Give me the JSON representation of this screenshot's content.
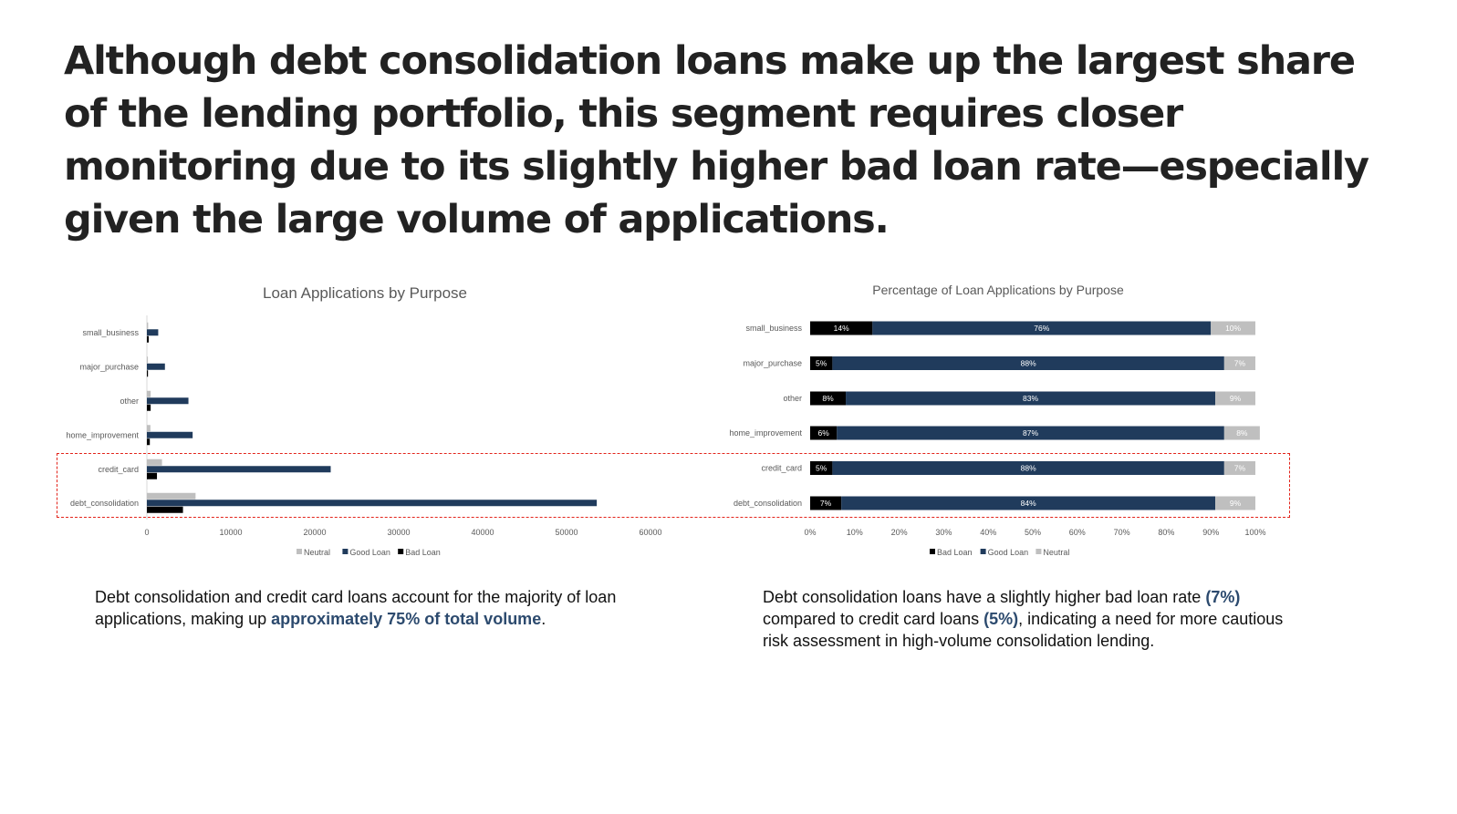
{
  "headline": "Although debt consolidation loans make up the largest share of the lending portfolio, this segment requires closer monitoring due to its slightly higher bad loan rate—especially given the large volume of applications.",
  "colors": {
    "neutral": "#bfbfbf",
    "good": "#203b5c",
    "bad": "#000000",
    "highlight_box": "#e3241b",
    "emphasis": "#2c4a6e"
  },
  "chart_data": [
    {
      "type": "bar",
      "orientation": "horizontal",
      "title": "Loan Applications by Purpose",
      "categories": [
        "small_business",
        "major_purchase",
        "other",
        "home_improvement",
        "credit_card",
        "debt_consolidation"
      ],
      "series": [
        {
          "name": "Neutral",
          "values": [
            150,
            120,
            450,
            420,
            1800,
            5800
          ]
        },
        {
          "name": "Good Loan",
          "values": [
            1350,
            2150,
            4950,
            5450,
            21900,
            53600
          ]
        },
        {
          "name": "Bad Loan",
          "values": [
            220,
            130,
            450,
            350,
            1200,
            4300
          ]
        }
      ],
      "xlim": [
        0,
        60000
      ],
      "xticks": [
        "0",
        "10000",
        "20000",
        "30000",
        "40000",
        "50000",
        "60000"
      ],
      "legend": [
        "Neutral",
        "Good Loan",
        "Bad Loan"
      ],
      "legend_position": "bottom",
      "grid": false
    },
    {
      "type": "bar",
      "orientation": "horizontal",
      "stacked": "percent",
      "title": "Percentage of Loan Applications by Purpose",
      "categories": [
        "small_business",
        "major_purchase",
        "other",
        "home_improvement",
        "credit_card",
        "debt_consolidation"
      ],
      "series": [
        {
          "name": "Bad Loan",
          "values": [
            14,
            5,
            8,
            6,
            5,
            7
          ],
          "labels": [
            "14%",
            "5%",
            "8%",
            "6%",
            "5%",
            "7%"
          ]
        },
        {
          "name": "Good Loan",
          "values": [
            76,
            88,
            83,
            87,
            88,
            84
          ],
          "labels": [
            "76%",
            "88%",
            "83%",
            "87%",
            "88%",
            "84%"
          ]
        },
        {
          "name": "Neutral",
          "values": [
            10,
            7,
            9,
            8,
            7,
            9
          ],
          "labels": [
            "10%",
            "7%",
            "9%",
            "8%",
            "7%",
            "9%"
          ]
        }
      ],
      "xlim": [
        0,
        100
      ],
      "xticks": [
        "0%",
        "10%",
        "20%",
        "30%",
        "40%",
        "50%",
        "60%",
        "70%",
        "80%",
        "90%",
        "100%"
      ],
      "legend": [
        "Bad Loan",
        "Good Loan",
        "Neutral"
      ],
      "legend_position": "bottom",
      "grid": false
    }
  ],
  "captions": {
    "left": {
      "before": "Debt consolidation and credit card loans account for the majority of loan applications, making up ",
      "emphasis": "approximately 75% of total volume",
      "after": "."
    },
    "right": {
      "part1": "Debt consolidation loans have a slightly higher bad loan rate ",
      "emphasis1": "(7%)",
      "part2": " compared to credit card loans ",
      "emphasis2": "(5%)",
      "part3": ", indicating a need for more cautious risk assessment in high-volume consolidation lending."
    }
  }
}
